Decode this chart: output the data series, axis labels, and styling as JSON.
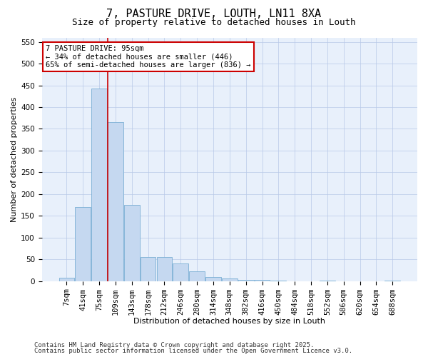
{
  "title": "7, PASTURE DRIVE, LOUTH, LN11 8XA",
  "subtitle": "Size of property relative to detached houses in Louth",
  "xlabel": "Distribution of detached houses by size in Louth",
  "ylabel": "Number of detached properties",
  "categories": [
    "7sqm",
    "41sqm",
    "75sqm",
    "109sqm",
    "143sqm",
    "178sqm",
    "212sqm",
    "246sqm",
    "280sqm",
    "314sqm",
    "348sqm",
    "382sqm",
    "416sqm",
    "450sqm",
    "484sqm",
    "518sqm",
    "552sqm",
    "586sqm",
    "620sqm",
    "654sqm",
    "688sqm"
  ],
  "values": [
    8,
    170,
    442,
    365,
    175,
    56,
    56,
    40,
    22,
    10,
    6,
    3,
    2,
    1,
    0,
    0,
    1,
    0,
    0,
    0,
    1
  ],
  "bar_color": "#c5d8f0",
  "bar_edge_color": "#7aafd4",
  "annotation_line1": "7 PASTURE DRIVE: 95sqm",
  "annotation_line2": "← 34% of detached houses are smaller (446)",
  "annotation_line3": "65% of semi-detached houses are larger (836) →",
  "annotation_box_color": "#ffffff",
  "annotation_box_edge": "#cc0000",
  "vline_color": "#cc0000",
  "ylim": [
    0,
    560
  ],
  "yticks": [
    0,
    50,
    100,
    150,
    200,
    250,
    300,
    350,
    400,
    450,
    500,
    550
  ],
  "footer1": "Contains HM Land Registry data © Crown copyright and database right 2025.",
  "footer2": "Contains public sector information licensed under the Open Government Licence v3.0.",
  "background_color": "#e8f0fb",
  "grid_color": "#b8c8e8",
  "title_fontsize": 11,
  "subtitle_fontsize": 9,
  "axis_label_fontsize": 8,
  "tick_fontsize": 7.5,
  "annotation_fontsize": 7.5,
  "footer_fontsize": 6.5
}
